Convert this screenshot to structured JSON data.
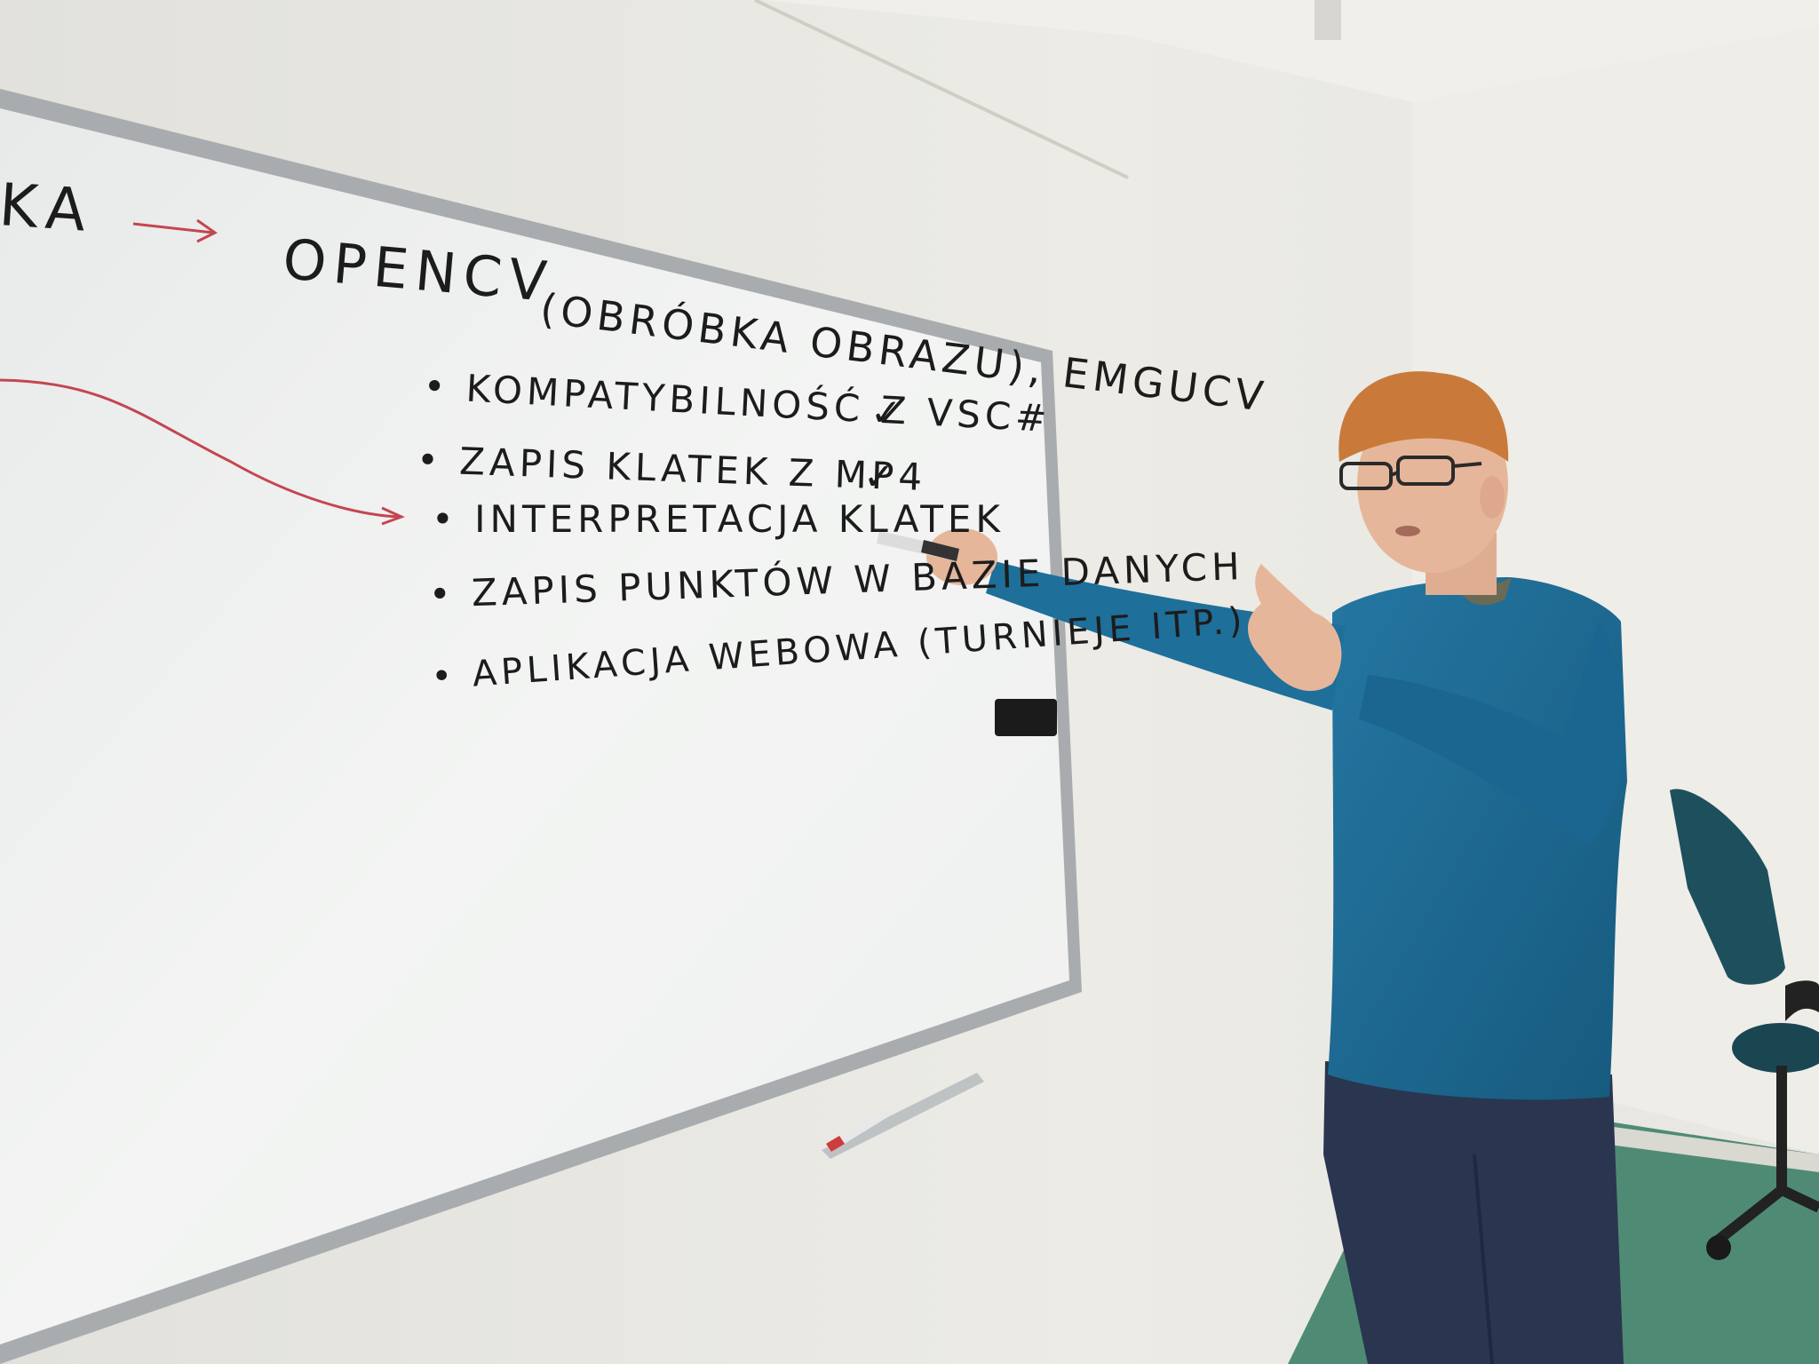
{
  "whiteboard": {
    "left_fragment": "KA",
    "title": "OPENCV",
    "title_paren": "(OBRÓBKA OBRAZU), EMGUCV",
    "items": [
      {
        "text": "KOMPATYBILNOŚĆ Z VSC#",
        "check": "✓"
      },
      {
        "text": "ZAPIS KLATEK Z MP4",
        "check": "✓"
      },
      {
        "text": "INTERPRETACJA KLATEK",
        "check": ""
      },
      {
        "text": "ZAPIS PUNKTÓW W BAZIE DANYCH",
        "check": ""
      },
      {
        "text": "APLIKACJA WEBOWA (TURNIEJE ITP.)",
        "check": ""
      }
    ],
    "bullet": "•"
  },
  "colors": {
    "wall": "#e7e6e0",
    "board": "#eef0ef",
    "board_frame": "#a9acaf",
    "marker_ink": "#1c1c1c",
    "red_ink": "#c2474f",
    "sweater": "#1d6a93",
    "jeans": "#2a3550",
    "hair": "#c97a3a",
    "skin": "#e6b69a",
    "chair": "#1e4f5c",
    "floor": "#4f8b74"
  }
}
